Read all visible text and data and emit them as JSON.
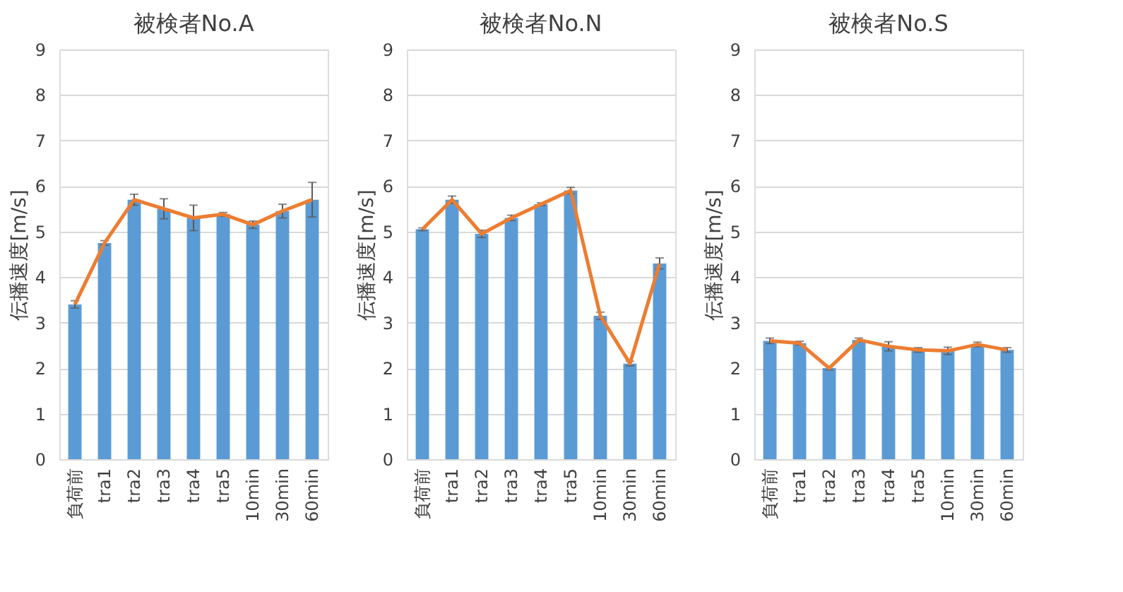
{
  "chart_data": [
    {
      "type": "bar",
      "title": "被検者No.A",
      "ylabel": "伝播速度[m/s]",
      "categories": [
        "負荷前",
        "tra1",
        "tra2",
        "tra3",
        "tra4",
        "tra5",
        "10min",
        "30min",
        "60min"
      ],
      "ylim": [
        0,
        9
      ],
      "yticks": [
        0,
        1,
        2,
        3,
        4,
        5,
        6,
        7,
        8,
        9
      ],
      "grid": "y",
      "series": [
        {
          "color": "#5b9bd5",
          "values": [
            3.4,
            4.75,
            5.7,
            5.5,
            5.3,
            5.38,
            5.15,
            5.45,
            5.7
          ],
          "errors": [
            0.08,
            0.05,
            0.12,
            0.22,
            0.28,
            0.04,
            0.08,
            0.15,
            0.38
          ]
        },
        {
          "type": "line",
          "color": "#ed7d31",
          "marker": "none",
          "values": [
            3.4,
            4.75,
            5.7,
            5.5,
            5.3,
            5.38,
            5.15,
            5.45,
            5.7
          ]
        }
      ]
    },
    {
      "type": "bar",
      "title": "被検者No.N",
      "ylabel": "伝播速度[m/s]",
      "categories": [
        "負荷前",
        "tra1",
        "tra2",
        "tra3",
        "tra4",
        "tra5",
        "10min",
        "30min",
        "60min"
      ],
      "ylim": [
        0,
        9
      ],
      "yticks": [
        0,
        1,
        2,
        3,
        4,
        5,
        6,
        7,
        8,
        9
      ],
      "grid": "y",
      "series": [
        {
          "color": "#5b9bd5",
          "values": [
            5.05,
            5.7,
            4.95,
            5.3,
            5.6,
            5.9,
            3.15,
            2.1,
            4.3
          ],
          "errors": [
            0.03,
            0.08,
            0.08,
            0.06,
            0.03,
            0.07,
            0.08,
            0.05,
            0.12
          ]
        },
        {
          "type": "line",
          "color": "#ed7d31",
          "marker": "none",
          "values": [
            5.05,
            5.7,
            4.95,
            5.3,
            5.6,
            5.9,
            3.15,
            2.1,
            4.3
          ]
        }
      ]
    },
    {
      "type": "bar",
      "title": "被検者No.S",
      "ylabel": "伝播速度[m/s]",
      "categories": [
        "負荷前",
        "tra1",
        "tra2",
        "tra3",
        "tra4",
        "tra5",
        "10min",
        "30min",
        "60min"
      ],
      "ylim": [
        0,
        9
      ],
      "yticks": [
        0,
        1,
        2,
        3,
        4,
        5,
        6,
        7,
        8,
        9
      ],
      "grid": "y",
      "series": [
        {
          "color": "#5b9bd5",
          "values": [
            2.6,
            2.55,
            2.0,
            2.62,
            2.48,
            2.4,
            2.38,
            2.52,
            2.4
          ],
          "errors": [
            0.06,
            0.04,
            0.04,
            0.04,
            0.1,
            0.05,
            0.08,
            0.05,
            0.05
          ]
        },
        {
          "type": "line",
          "color": "#ed7d31",
          "marker": "none",
          "values": [
            2.6,
            2.55,
            2.0,
            2.62,
            2.48,
            2.4,
            2.38,
            2.52,
            2.4
          ]
        }
      ]
    }
  ]
}
